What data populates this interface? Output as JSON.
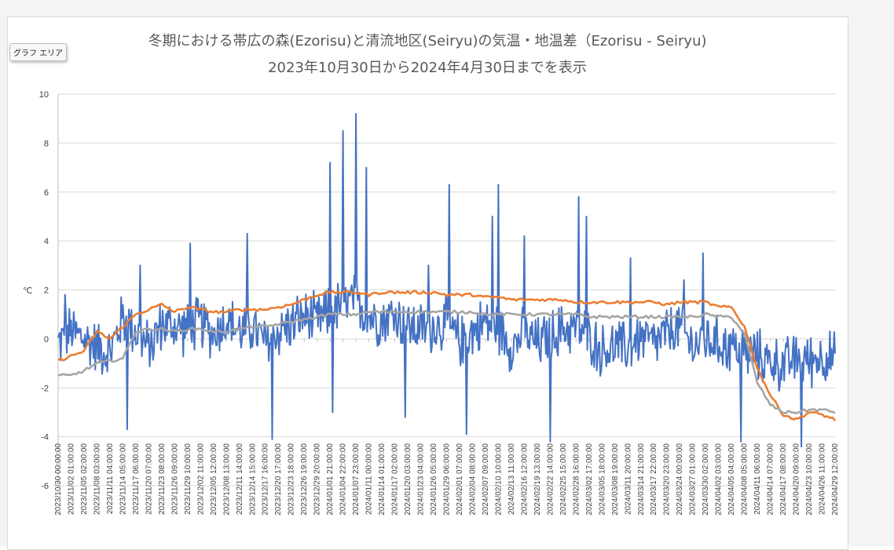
{
  "tooltip_label": "グラフ エリア",
  "chart_data": {
    "type": "line",
    "title": "冬期における帯広の森(Ezorisu)と清流地区(Seiryu)の気温・地温差（Ezorisu - Seiryu)",
    "subtitle": "2023年10月30日から2024年4月30日までを表示",
    "xlabel": "",
    "ylabel": "℃",
    "ylim": [
      -6,
      10
    ],
    "yticks": [
      -6,
      -4,
      -2,
      0,
      2,
      4,
      6,
      8,
      10
    ],
    "grid": true,
    "legend": "bottom",
    "x_ticks": [
      "2023/10/30 00:00:00",
      "2023/11/02 01:00:00",
      "2023/11/05 02:00:00",
      "2023/11/08 03:00:00",
      "2023/11/11 04:00:00",
      "2023/11/14 05:00:00",
      "2023/11/17 06:00:00",
      "2023/11/20 07:00:00",
      "2023/11/23 08:00:00",
      "2023/11/26 09:00:00",
      "2023/11/29 10:00:00",
      "2023/12/02 11:00:00",
      "2023/12/05 12:00:00",
      "2023/12/08 13:00:00",
      "2023/12/11 14:00:00",
      "2023/12/14 15:00:00",
      "2023/12/17 16:00:00",
      "2023/12/20 17:00:00",
      "2023/12/23 18:00:00",
      "2023/12/26 19:00:00",
      "2023/12/29 20:00:00",
      "2024/01/01 21:00:00",
      "2024/01/04 22:00:00",
      "2024/01/07 23:00:00",
      "2024/01/11 00:00:00",
      "2024/01/14 01:00:00",
      "2024/01/17 02:00:00",
      "2024/01/20 03:00:00",
      "2024/01/23 04:00:00",
      "2024/01/26 05:00:00",
      "2024/01/29 06:00:00",
      "2024/02/01 07:00:00",
      "2024/02/04 08:00:00",
      "2024/02/07 09:00:00",
      "2024/02/10 10:00:00",
      "2024/02/13 11:00:00",
      "2024/02/16 12:00:00",
      "2024/02/19 13:00:00",
      "2024/02/22 14:00:00",
      "2024/02/25 15:00:00",
      "2024/02/28 16:00:00",
      "2024/03/02 17:00:00",
      "2024/03/05 18:00:00",
      "2024/03/08 19:00:00",
      "2024/03/11 20:00:00",
      "2024/03/14 21:00:00",
      "2024/03/17 22:00:00",
      "2024/03/20 23:00:00",
      "2024/03/24 00:00:00",
      "2024/03/27 01:00:00",
      "2024/03/30 02:00:00",
      "2024/04/02 03:00:00",
      "2024/04/05 04:00:00",
      "2024/04/08 05:00:00",
      "2024/04/11 06:00:00",
      "2024/04/14 07:00:00",
      "2024/04/17 08:00:00",
      "2024/04/20 09:00:00",
      "2024/04/23 10:00:00",
      "2024/04/26 11:00:00",
      "2024/04/29 12:00:00"
    ],
    "series": [
      {
        "color": "#4472c4",
        "noise": 0.85,
        "values": [
          -0.2,
          0.3,
          0.0,
          -0.3,
          -0.6,
          0.9,
          0.3,
          -0.4,
          0.6,
          0.5,
          0.4,
          0.7,
          0.2,
          0.8,
          0.3,
          0.5,
          -0.2,
          0.3,
          0.6,
          0.9,
          0.7,
          1.1,
          1.4,
          1.6,
          0.9,
          0.8,
          1.0,
          0.5,
          0.4,
          0.5,
          0.6,
          -0.1,
          0.3,
          0.7,
          0.5,
          -0.3,
          0.2,
          -0.2,
          0.1,
          0.4,
          0.5,
          0.1,
          -0.5,
          -0.3,
          -0.4,
          0.1,
          -0.2,
          0.2,
          0.5,
          -0.3,
          0.0,
          -0.2,
          -0.3,
          -0.5,
          -0.7,
          -0.9,
          -1.1,
          -0.8,
          -0.9,
          -0.7,
          -0.8
        ],
        "peaks": [
          [
            0.5,
            1.8
          ],
          [
            6.3,
            3.0
          ],
          [
            21.0,
            7.2
          ],
          [
            22.0,
            8.5
          ],
          [
            23.0,
            9.2
          ],
          [
            23.8,
            7.0
          ],
          [
            21.2,
            -3.0
          ],
          [
            14.6,
            4.3
          ],
          [
            10.2,
            3.9
          ],
          [
            28.6,
            3.0
          ],
          [
            30.2,
            6.3
          ],
          [
            34.0,
            6.3
          ],
          [
            33.5,
            5.0
          ],
          [
            36.0,
            4.2
          ],
          [
            40.2,
            5.8
          ],
          [
            40.8,
            5.0
          ],
          [
            16.5,
            -4.1
          ],
          [
            31.5,
            -3.9
          ],
          [
            38.0,
            -4.2
          ],
          [
            52.7,
            -4.2
          ],
          [
            57.4,
            -4.4
          ],
          [
            49.8,
            3.5
          ],
          [
            48.3,
            2.4
          ],
          [
            5.3,
            -3.7
          ],
          [
            26.8,
            -3.2
          ],
          [
            44.2,
            3.3
          ]
        ]
      },
      {
        "color": "#ed7d31",
        "values": [
          -0.9,
          -0.7,
          -0.5,
          0.3,
          0.0,
          0.5,
          1.0,
          1.2,
          1.4,
          1.1,
          1.3,
          1.2,
          1.1,
          1.1,
          1.2,
          1.2,
          1.2,
          1.3,
          1.4,
          1.6,
          1.8,
          1.9,
          1.9,
          1.9,
          1.8,
          1.9,
          1.9,
          1.9,
          1.9,
          1.9,
          1.8,
          1.8,
          1.8,
          1.7,
          1.7,
          1.6,
          1.6,
          1.6,
          1.6,
          1.6,
          1.5,
          1.5,
          1.5,
          1.5,
          1.5,
          1.5,
          1.5,
          1.4,
          1.5,
          1.5,
          1.5,
          1.3,
          1.3,
          0.5,
          -1.2,
          -2.3,
          -3.1,
          -3.3,
          -3.0,
          -3.1,
          -3.3
        ]
      },
      {
        "color": "#a5a5a5",
        "values": [
          -1.5,
          -1.5,
          -1.3,
          -1.0,
          -0.9,
          -0.8,
          0.3,
          0.4,
          0.4,
          0.3,
          0.4,
          0.4,
          0.3,
          0.3,
          0.4,
          0.5,
          0.5,
          0.6,
          0.7,
          0.8,
          0.9,
          1.0,
          1.0,
          1.0,
          1.1,
          1.1,
          1.1,
          1.1,
          1.1,
          1.1,
          1.1,
          1.1,
          1.1,
          1.0,
          1.0,
          1.0,
          1.0,
          1.0,
          1.0,
          1.0,
          1.0,
          0.9,
          0.9,
          0.9,
          0.9,
          0.9,
          0.9,
          0.9,
          0.9,
          0.9,
          1.0,
          0.9,
          0.9,
          0.2,
          -1.8,
          -2.7,
          -3.0,
          -3.0,
          -2.9,
          -2.9,
          -3.0
        ]
      }
    ]
  }
}
